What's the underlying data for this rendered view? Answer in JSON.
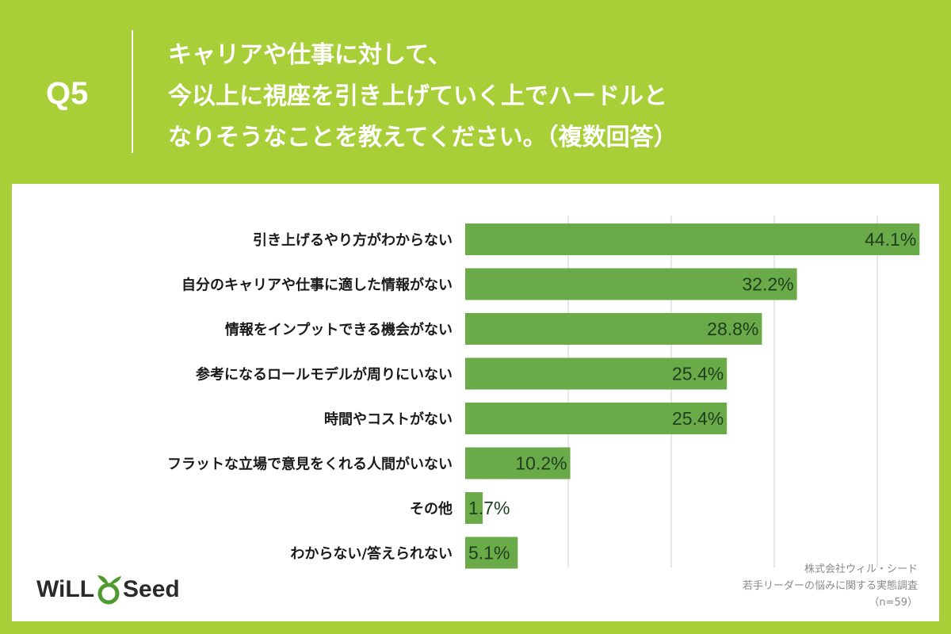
{
  "header": {
    "q_label": "Q5",
    "lines": [
      "キャリアや仕事に対して、",
      "今以上に視座を引き上げていく上でハードルと",
      "なりそうなことを教えてください。（複数回答）"
    ]
  },
  "chart_data": {
    "type": "bar",
    "orientation": "horizontal",
    "categories": [
      "引き上げるやり方がわからない",
      "自分のキャリアや仕事に適した情報がない",
      "情報をインプットできる機会がない",
      "参考になるロールモデルが周りにいない",
      "時間やコストがない",
      "フラットな立場で意見をくれる人間がいない",
      "その他",
      "わからない/答えられない"
    ],
    "values": [
      44.1,
      32.2,
      28.8,
      25.4,
      25.4,
      10.2,
      1.7,
      5.1
    ],
    "value_labels": [
      "44.1%",
      "32.2%",
      "28.8%",
      "25.4%",
      "25.4%",
      "10.2%",
      "1.7%",
      "5.1%"
    ],
    "xlim": [
      0,
      50
    ],
    "grid": true,
    "unit": "%"
  },
  "source": {
    "company": "株式会社ウィル・シード",
    "survey": "若手リーダーの悩みに関する実態調査",
    "sample": "（n=59）"
  },
  "logo": {
    "left": "WiLL",
    "right": "Seed"
  },
  "colors": {
    "background": "#a8cf38",
    "bar": "#6aaa48",
    "grid": "#cfcfcf",
    "value_text": "#1e3f1e",
    "leaf": "#4f9a2e"
  }
}
